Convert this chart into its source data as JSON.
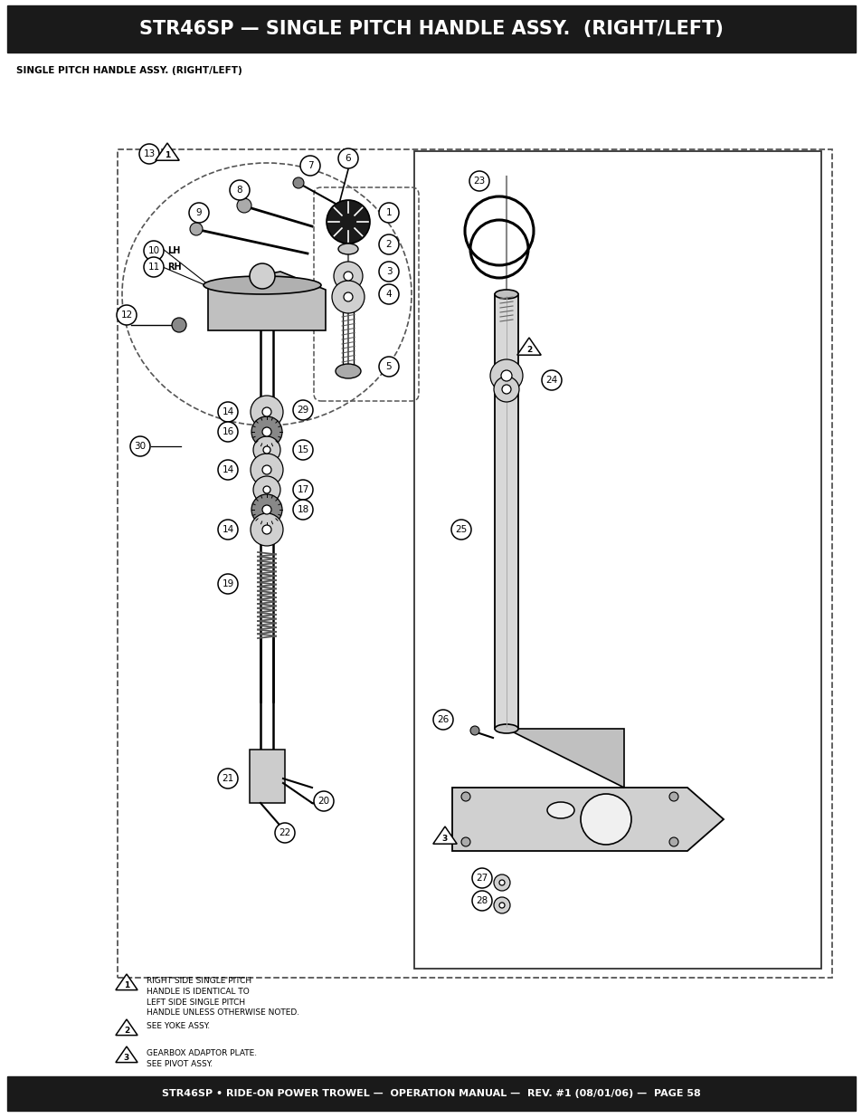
{
  "title": "STR46SP — SINGLE PITCH HANDLE ASSY.  (RIGHT/LEFT)",
  "subtitle": "SINGLE PITCH HANDLE ASSY. (RIGHT/LEFT)",
  "footer": "STR46SP • RIDE-ON POWER TROWEL —  OPERATION MANUAL —  REV. #1 (08/01/06) —  PAGE 58",
  "header_bg": "#1a1a1a",
  "footer_bg": "#1a1a1a",
  "header_text_color": "#ffffff",
  "footer_text_color": "#ffffff",
  "bg_color": "#ffffff",
  "note1_text": "RIGHT SIDE SINGLE PITCH\nHANDLE IS IDENTICAL TO\nLEFT SIDE SINGLE PITCH\nHANDLE UNLESS OTHERWISE NOTED.",
  "note2_text": "SEE YOKE ASSY.",
  "note3_text": "GEARBOX ADAPTOR PLATE.\nSEE PIVOT ASSY."
}
